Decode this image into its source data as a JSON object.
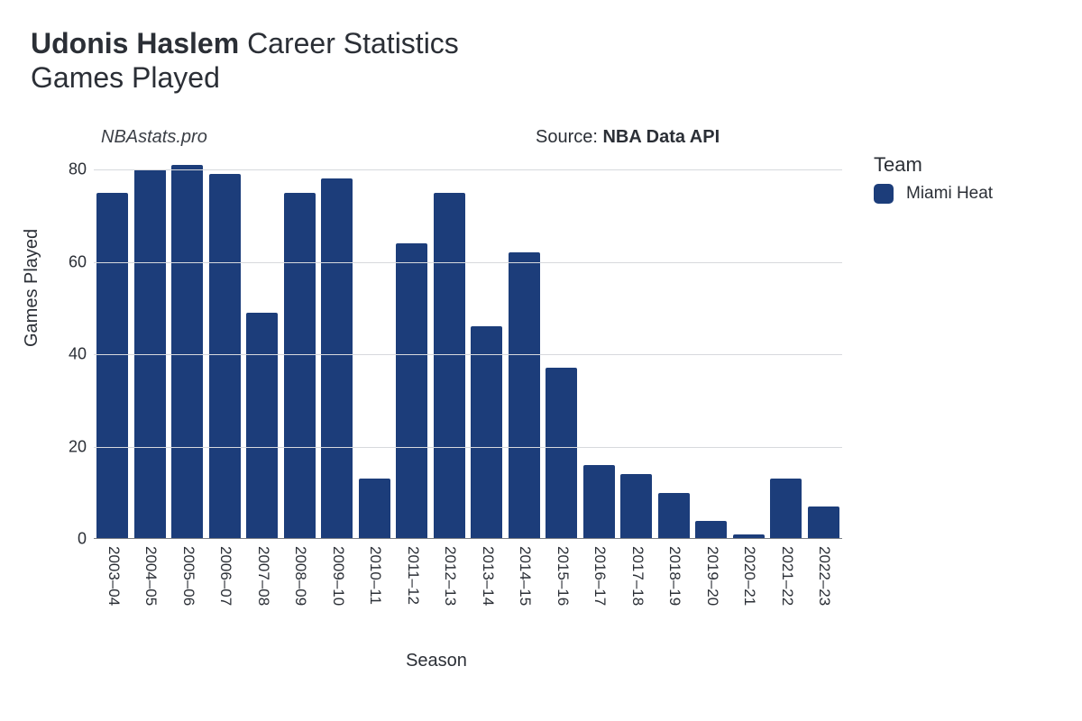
{
  "title": {
    "player": "Udonis Haslem",
    "suffix": "Career Statistics",
    "subtitle": "Games Played"
  },
  "meta": {
    "watermark": "NBAstats.pro",
    "source_prefix": "Source: ",
    "source_name": "NBA Data API"
  },
  "legend": {
    "title": "Team",
    "items": [
      {
        "label": "Miami Heat",
        "color": "#1c3d7a"
      }
    ]
  },
  "chart": {
    "type": "bar",
    "x_label": "Season",
    "y_label": "Games Played",
    "background_color": "#ffffff",
    "grid_color": "#d7d9dd",
    "baseline_color": "#7b7f86",
    "bar_color": "#1c3d7a",
    "bar_width_ratio": 0.85,
    "bar_corner_radius": 2,
    "label_fontsize": 20,
    "tick_fontsize": 18,
    "ylim": [
      0,
      80
    ],
    "ytick_step": 20,
    "yticks": [
      0,
      20,
      40,
      60,
      80
    ],
    "seasons": [
      "2003–04",
      "2004–05",
      "2005–06",
      "2006–07",
      "2007–08",
      "2008–09",
      "2009–10",
      "2010–11",
      "2011–12",
      "2012–13",
      "2013–14",
      "2014–15",
      "2015–16",
      "2016–17",
      "2017–18",
      "2018–19",
      "2019–20",
      "2020–21",
      "2021–22",
      "2022–23"
    ],
    "values": [
      75,
      80,
      81,
      79,
      49,
      75,
      78,
      13,
      64,
      75,
      46,
      62,
      37,
      16,
      14,
      10,
      4,
      1,
      13,
      7
    ]
  }
}
